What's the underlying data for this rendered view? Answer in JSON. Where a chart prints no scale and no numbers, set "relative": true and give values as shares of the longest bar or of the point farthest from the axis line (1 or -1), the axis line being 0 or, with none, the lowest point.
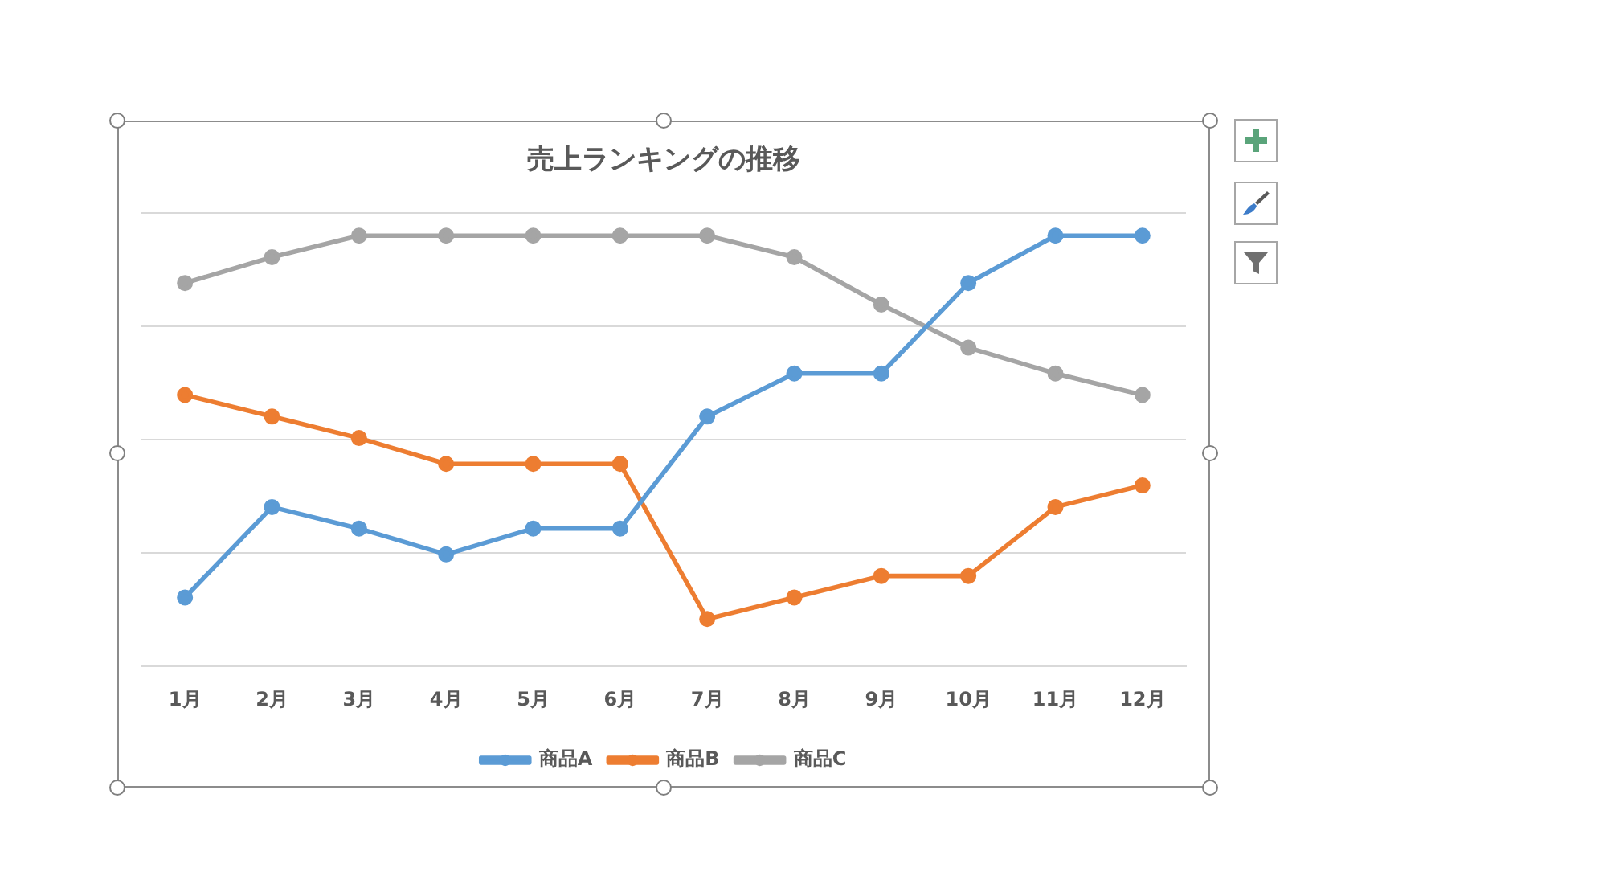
{
  "chart_data": {
    "type": "line",
    "title": "売上ランキングの推移",
    "categories": [
      "1月",
      "2月",
      "3月",
      "4月",
      "5月",
      "6月",
      "7月",
      "8月",
      "9月",
      "10月",
      "11月",
      "12月"
    ],
    "series": [
      {
        "name": "商品A",
        "color": "#5b9bd5",
        "values": [
          0.16,
          0.37,
          0.32,
          0.26,
          0.32,
          0.32,
          0.58,
          0.68,
          0.68,
          0.89,
          1,
          1
        ]
      },
      {
        "name": "商品B",
        "color": "#ed7d31",
        "values": [
          0.63,
          0.58,
          0.53,
          0.47,
          0.47,
          0.47,
          0.11,
          0.16,
          0.21,
          0.21,
          0.37,
          0.42
        ]
      },
      {
        "name": "商品C",
        "color": "#a5a5a5",
        "values": [
          0.89,
          0.95,
          1,
          1,
          1,
          1,
          1,
          0.95,
          0.84,
          0.74,
          0.68,
          0.63
        ]
      }
    ],
    "relative": true,
    "grid": "y",
    "legend": "bottom",
    "marker": "circle"
  }
}
